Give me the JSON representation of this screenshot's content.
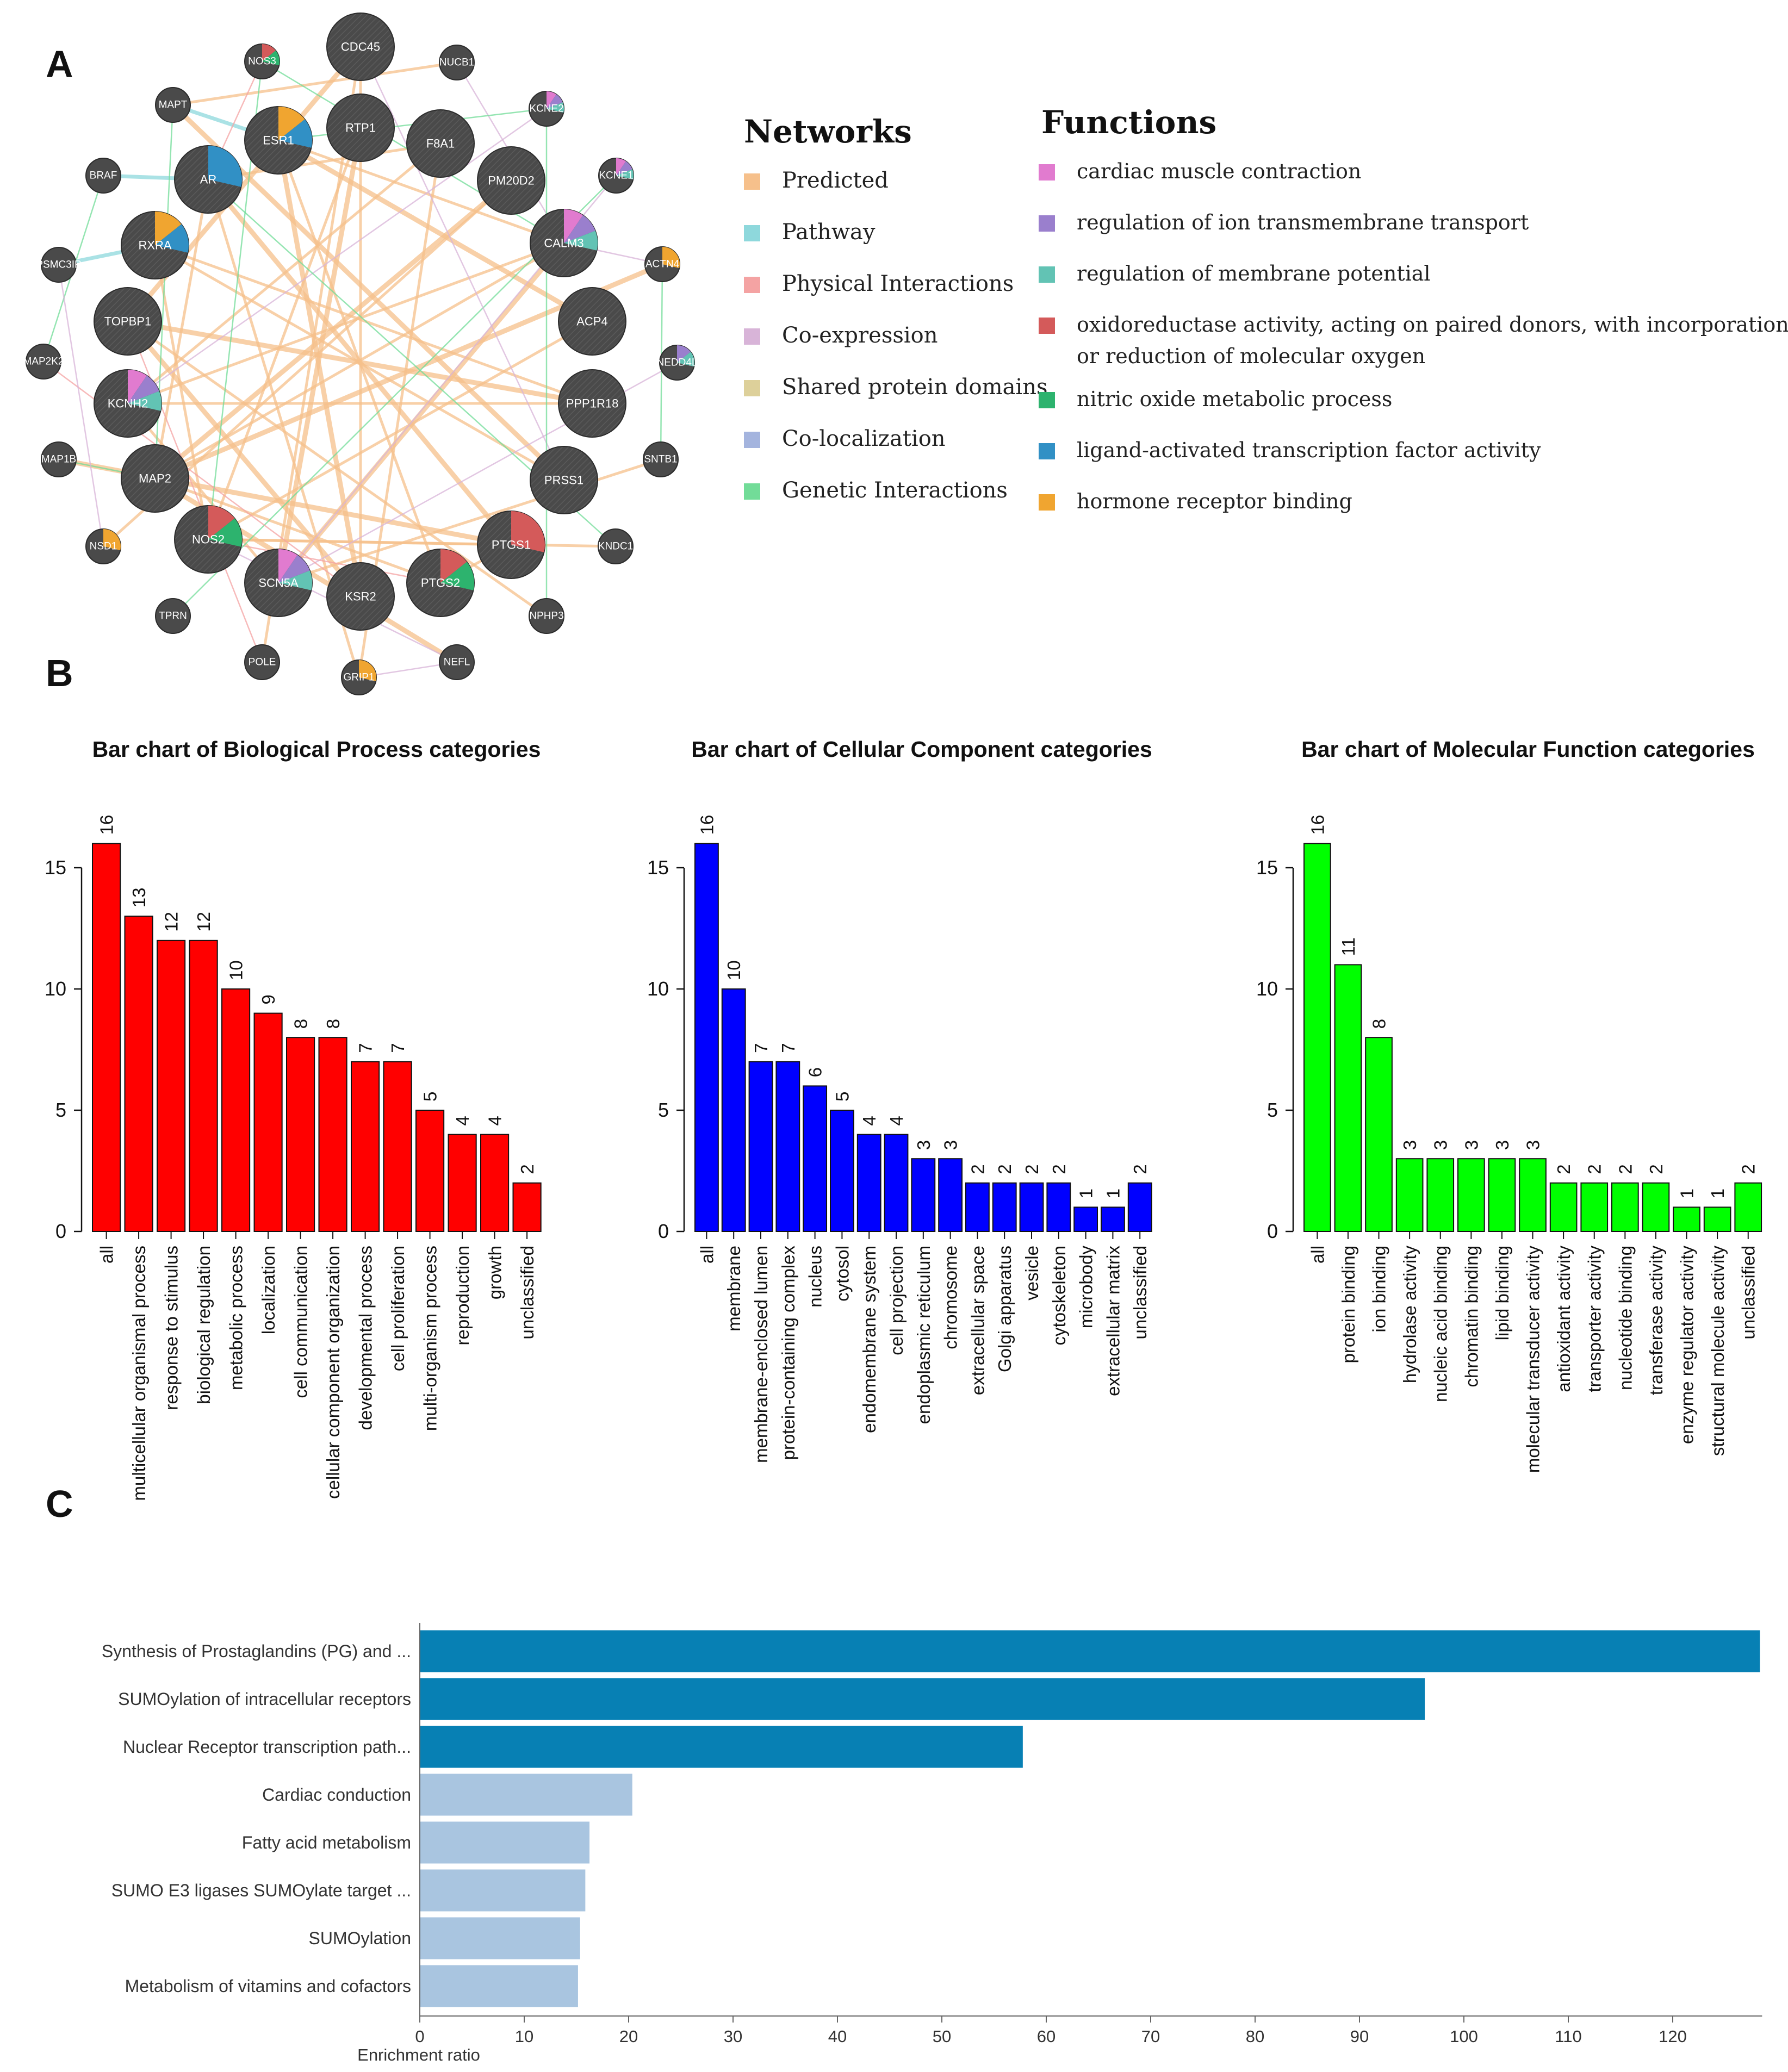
{
  "panels": {
    "a": "A",
    "b": "B",
    "c": "C"
  },
  "network": {
    "legend_networks_title": "Networks",
    "legend_functions_title": "Functions",
    "network_types": [
      {
        "label": "Predicted",
        "color": "#f6c08b"
      },
      {
        "label": "Pathway",
        "color": "#8ed8dc"
      },
      {
        "label": "Physical Interactions",
        "color": "#f4a3a3"
      },
      {
        "label": "Co-expression",
        "color": "#d8b4d8"
      },
      {
        "label": "Shared protein domains",
        "color": "#ddd09a"
      },
      {
        "label": "Co-localization",
        "color": "#a4b4de"
      },
      {
        "label": "Genetic Interactions",
        "color": "#72dc98"
      }
    ],
    "functions": [
      {
        "label": "cardiac muscle contraction",
        "color": "#e17bcf"
      },
      {
        "label": "regulation of ion transmembrane transport",
        "color": "#9a7fcd"
      },
      {
        "label": "regulation of membrane potential",
        "color": "#62c3b4"
      },
      {
        "label": "oxidoreductase activity, acting on paired donors, with incorporation",
        "label2": "or reduction of molecular oxygen",
        "color": "#d45a5a"
      },
      {
        "label": "nitric oxide metabolic process",
        "color": "#2db36e"
      },
      {
        "label": "ligand-activated transcription factor activity",
        "color": "#3190c5"
      },
      {
        "label": "hormone receptor binding",
        "color": "#f0a530"
      }
    ],
    "nodes": [
      {
        "name": "CDC45",
        "r": 1,
        "fn": []
      },
      {
        "name": "NUCB1",
        "r": 0,
        "fn": []
      },
      {
        "name": "KCNE2",
        "r": 0,
        "fn": [
          "#e17bcf",
          "#9a7fcd",
          "#62c3b4"
        ]
      },
      {
        "name": "KCNE1",
        "r": 0,
        "fn": [
          "#e17bcf",
          "#9a7fcd",
          "#62c3b4"
        ]
      },
      {
        "name": "ACTN4",
        "r": 0,
        "fn": [
          "#f0a530"
        ]
      },
      {
        "name": "NEDD4L",
        "r": 0,
        "fn": [
          "#9a7fcd",
          "#62c3b4"
        ]
      },
      {
        "name": "SNTB1",
        "r": 0,
        "fn": []
      },
      {
        "name": "KNDC1",
        "r": 0,
        "fn": []
      },
      {
        "name": "NPHP3",
        "r": 0,
        "fn": []
      },
      {
        "name": "NEFL",
        "r": 0,
        "fn": []
      },
      {
        "name": "GRIP1",
        "r": 0,
        "fn": [
          "#f0a530"
        ]
      },
      {
        "name": "POLE",
        "r": 0,
        "fn": []
      },
      {
        "name": "TPRN",
        "r": 0,
        "fn": []
      },
      {
        "name": "NSD1",
        "r": 0,
        "fn": [
          "#f0a530"
        ]
      },
      {
        "name": "MAP1B",
        "r": 0,
        "fn": []
      },
      {
        "name": "MAP2K2",
        "r": 0,
        "fn": []
      },
      {
        "name": "PSMC3IP",
        "r": 0,
        "fn": []
      },
      {
        "name": "BRAF",
        "r": 0,
        "fn": []
      },
      {
        "name": "MAPT",
        "r": 0,
        "fn": []
      },
      {
        "name": "NOS3",
        "r": 0,
        "fn": [
          "#d45a5a",
          "#2db36e"
        ]
      },
      {
        "name": "ESR1",
        "r": 1,
        "fn": [
          "#f0a530",
          "#3190c5"
        ]
      },
      {
        "name": "RTP1",
        "r": 1,
        "fn": []
      },
      {
        "name": "F8A1",
        "r": 1,
        "fn": []
      },
      {
        "name": "PM20D2",
        "r": 1,
        "fn": []
      },
      {
        "name": "CALM3",
        "r": 1,
        "fn": [
          "#e17bcf",
          "#9a7fcd",
          "#62c3b4"
        ]
      },
      {
        "name": "ACP4",
        "r": 1,
        "fn": []
      },
      {
        "name": "PPP1R18",
        "r": 1,
        "fn": []
      },
      {
        "name": "PRSS1",
        "r": 1,
        "fn": []
      },
      {
        "name": "PTGS1",
        "r": 1,
        "fn": [
          "#d45a5a"
        ]
      },
      {
        "name": "PTGS2",
        "r": 1,
        "fn": [
          "#d45a5a",
          "#2db36e"
        ]
      },
      {
        "name": "KSR2",
        "r": 1,
        "fn": []
      },
      {
        "name": "SCN5A",
        "r": 1,
        "fn": [
          "#e17bcf",
          "#9a7fcd",
          "#62c3b4"
        ]
      },
      {
        "name": "NOS2",
        "r": 1,
        "fn": [
          "#d45a5a",
          "#2db36e"
        ]
      },
      {
        "name": "MAP2",
        "r": 1,
        "fn": []
      },
      {
        "name": "KCNH2",
        "r": 1,
        "fn": [
          "#e17bcf",
          "#9a7fcd",
          "#62c3b4"
        ]
      },
      {
        "name": "TOPBP1",
        "r": 1,
        "fn": []
      },
      {
        "name": "RXRA",
        "r": 1,
        "fn": [
          "#f0a530",
          "#3190c5"
        ]
      },
      {
        "name": "AR",
        "r": 1,
        "fn": [
          "#3190c5"
        ]
      }
    ],
    "edges": [
      [
        "ESR1",
        "KSR2",
        "p"
      ],
      [
        "ESR1",
        "CALM3",
        "p"
      ],
      [
        "ESR1",
        "PTGS2",
        "p"
      ],
      [
        "ESR1",
        "ACP4",
        "p"
      ],
      [
        "RXRA",
        "NOS2",
        "p"
      ],
      [
        "RXRA",
        "PPP1R18",
        "p"
      ],
      [
        "AR",
        "PTGS1",
        "p"
      ],
      [
        "AR",
        "F8A1",
        "p"
      ],
      [
        "AR",
        "MAP2",
        "p"
      ],
      [
        "RTP1",
        "SCN5A",
        "p"
      ],
      [
        "RTP1",
        "NOS2",
        "p"
      ],
      [
        "CDC45",
        "KSR2",
        "p"
      ],
      [
        "CDC45",
        "TOPBP1",
        "p"
      ],
      [
        "F8A1",
        "KCNH2",
        "p"
      ],
      [
        "F8A1",
        "GRIP1",
        "p"
      ],
      [
        "PM20D2",
        "MAP2",
        "p"
      ],
      [
        "PM20D2",
        "NSD1",
        "p"
      ],
      [
        "CALM3",
        "KCNH2",
        "p"
      ],
      [
        "CALM3",
        "SCN5A",
        "p"
      ],
      [
        "CALM3",
        "MAP2",
        "p"
      ],
      [
        "ACP4",
        "NOS2",
        "p"
      ],
      [
        "PPP1R18",
        "TOPBP1",
        "p"
      ],
      [
        "PPP1R18",
        "KCNH2",
        "p"
      ],
      [
        "PRSS1",
        "RXRA",
        "p"
      ],
      [
        "PRSS1",
        "MAPT",
        "p"
      ],
      [
        "PTGS1",
        "PTGS2",
        "p"
      ],
      [
        "PTGS1",
        "NOS2",
        "p"
      ],
      [
        "TOPBP1",
        "KSR2",
        "p"
      ],
      [
        "KCNH2",
        "SCN5A",
        "p"
      ],
      [
        "MAP2",
        "PTGS2",
        "p"
      ],
      [
        "ACTN4",
        "MAP2",
        "p"
      ],
      [
        "KNDC1",
        "NOS2",
        "p"
      ],
      [
        "NPHP3",
        "TOPBP1",
        "p"
      ],
      [
        "NEFL",
        "MAP2",
        "p"
      ],
      [
        "SNTB1",
        "SCN5A",
        "p"
      ],
      [
        "NUCB1",
        "MAPT",
        "p"
      ],
      [
        "MAP1B",
        "PTGS1",
        "p"
      ],
      [
        "GRIP1",
        "AR",
        "p"
      ],
      [
        "POLE",
        "CDC45",
        "p"
      ],
      [
        "RXRA",
        "PSMC3IP",
        "w"
      ],
      [
        "AR",
        "BRAF",
        "w"
      ],
      [
        "ESR1",
        "MAPT",
        "w"
      ],
      [
        "KCNE2",
        "KCNH2",
        "m"
      ],
      [
        "KCNE1",
        "SCN5A",
        "m"
      ],
      [
        "NEDD4L",
        "SCN5A",
        "m"
      ],
      [
        "NOS3",
        "NOS2",
        "g"
      ],
      [
        "NOS3",
        "CALM3",
        "g"
      ],
      [
        "BRAF",
        "MAP2K2",
        "g"
      ],
      [
        "MAPT",
        "MAP2",
        "g"
      ],
      [
        "MAP1B",
        "MAP2",
        "g"
      ],
      [
        "NEFL",
        "NOS2",
        "m"
      ],
      [
        "PTGS2",
        "NOS2",
        "r"
      ],
      [
        "TPRN",
        "KCNE1",
        "g"
      ],
      [
        "ACTN4",
        "CALM3",
        "m"
      ],
      [
        "MAP2K2",
        "KSR2",
        "r"
      ],
      [
        "NUCB1",
        "CALM3",
        "m"
      ],
      [
        "SNTB1",
        "ACTN4",
        "g"
      ],
      [
        "CDC45",
        "PRSS1",
        "m"
      ],
      [
        "KNDC1",
        "AR",
        "g"
      ],
      [
        "POLE",
        "TOPBP1",
        "r"
      ],
      [
        "GRIP1",
        "NEFL",
        "m"
      ],
      [
        "NOS3",
        "AR",
        "r"
      ],
      [
        "KCNE2",
        "ESR1",
        "g"
      ],
      [
        "PSMC3IP",
        "NSD1",
        "m"
      ],
      [
        "NPHP3",
        "KCNE2",
        "g"
      ]
    ]
  },
  "go_charts": [
    {
      "type": "bar",
      "title": "Bar chart of Biological Process categories",
      "color": "#ff0000",
      "ylim": [
        0,
        16
      ],
      "yticks": [
        "0",
        "5",
        "10",
        "15"
      ],
      "categories": [
        "all",
        "multicellular organismal process",
        "response to stimulus",
        "biological regulation",
        "metabolic process",
        "localization",
        "cell communication",
        "cellular component organization",
        "developmental process",
        "cell proliferation",
        "multi-organism process",
        "reproduction",
        "growth",
        "unclassified"
      ],
      "values": [
        16,
        13,
        12,
        12,
        10,
        9,
        8,
        8,
        7,
        7,
        5,
        4,
        4,
        2
      ]
    },
    {
      "type": "bar",
      "title": "Bar chart of Cellular Component categories",
      "color": "#0000ff",
      "ylim": [
        0,
        16
      ],
      "yticks": [
        "0",
        "5",
        "10",
        "15"
      ],
      "categories": [
        "all",
        "membrane",
        "membrane-enclosed lumen",
        "protein-containing complex",
        "nucleus",
        "cytosol",
        "endomembrane system",
        "cell projection",
        "endoplasmic reticulum",
        "chromosome",
        "extracellular space",
        "Golgi apparatus",
        "vesicle",
        "cytoskeleton",
        "microbody",
        "extracellular matrix",
        "unclassified"
      ],
      "values": [
        16,
        10,
        7,
        7,
        6,
        5,
        4,
        4,
        3,
        3,
        2,
        2,
        2,
        2,
        1,
        1,
        2
      ]
    },
    {
      "type": "bar",
      "title": "Bar chart of Molecular Function categories",
      "color": "#00ff00",
      "ylim": [
        0,
        16
      ],
      "yticks": [
        "0",
        "5",
        "10",
        "15"
      ],
      "categories": [
        "all",
        "protein binding",
        "ion binding",
        "hydrolase activity",
        "nucleic acid binding",
        "chromatin binding",
        "lipid binding",
        "molecular transducer activity",
        "antioxidant activity",
        "transporter activity",
        "nucleotide binding",
        "transferase activity",
        "enzyme regulator activity",
        "structural molecule activity",
        "unclassified"
      ],
      "values": [
        16,
        11,
        8,
        3,
        3,
        3,
        3,
        3,
        2,
        2,
        2,
        2,
        1,
        1,
        2
      ]
    }
  ],
  "chart_data": {
    "type": "bar",
    "orientation": "horizontal",
    "xlabel": "Enrichment ratio",
    "xlim": [
      0,
      128.3
    ],
    "xticks": [
      "0",
      "10",
      "20",
      "30",
      "40",
      "50",
      "60",
      "70",
      "80",
      "90",
      "100",
      "110",
      "120"
    ],
    "categories": [
      "Synthesis of Prostaglandins (PG) and ...",
      "SUMOylation of intracellular receptors",
      "Nuclear Receptor transcription path...",
      "Cardiac conduction",
      "Fatty acid metabolism",
      "SUMO E3 ligases SUMOylate target ...",
      "SUMOylation",
      "Metabolism of vitamins and cofactors"
    ],
    "values": [
      128.3,
      96.2,
      57.7,
      20.3,
      16.2,
      15.8,
      15.3,
      15.1
    ],
    "significant": [
      true,
      true,
      true,
      false,
      false,
      false,
      false,
      false
    ],
    "colors": {
      "significant": "#0780b4",
      "other": "#a9c5e0"
    }
  }
}
